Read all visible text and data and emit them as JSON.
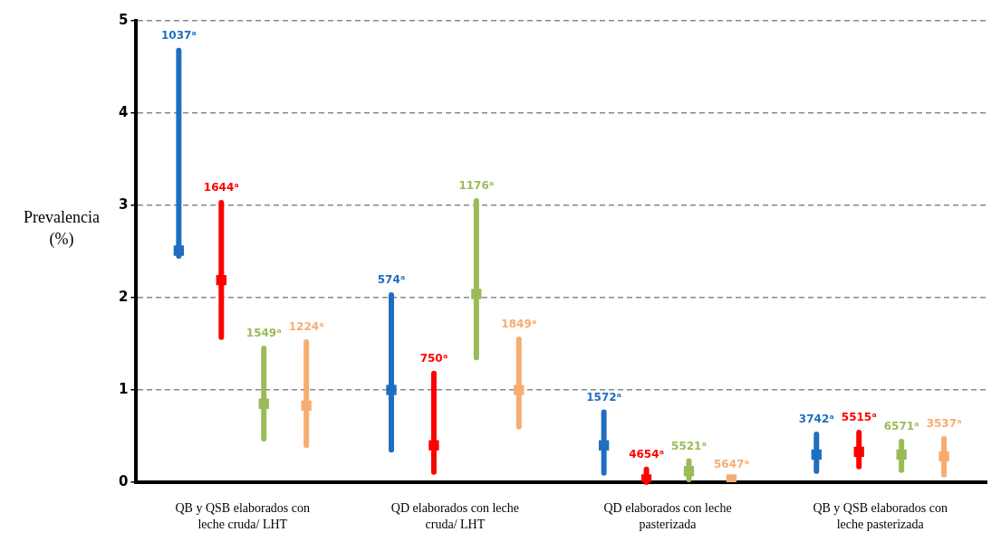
{
  "chart_data": {
    "type": "scatter",
    "ylabel": "Prevalencia (%)",
    "categories": [
      "QB y QSB elaborados con leche cruda/ LHT",
      "QD elaborados con leche cruda/ LHT",
      "QD elaborados con leche pasterizada",
      "QB y QSB elaborados con leche pasterizada"
    ],
    "series": [
      {
        "color": "#1f6fc0",
        "values": [
          2.51,
          1.0,
          0.4,
          0.3
        ],
        "errors": [
          [
            2.45,
            4.68
          ],
          [
            0.35,
            2.03
          ],
          [
            0.1,
            0.76
          ],
          [
            0.12,
            0.52
          ]
        ]
      },
      {
        "color": "#ff0000",
        "values": [
          2.19,
          0.4,
          0.03,
          0.33
        ],
        "errors": [
          [
            1.57,
            3.03
          ],
          [
            0.11,
            1.18
          ],
          [
            0.0,
            0.14
          ],
          [
            0.17,
            0.54
          ]
        ]
      },
      {
        "color": "#9bbb59",
        "values": [
          0.85,
          2.04,
          0.12,
          0.3
        ],
        "errors": [
          [
            0.47,
            1.45
          ],
          [
            1.35,
            3.05
          ],
          [
            0.03,
            0.23
          ],
          [
            0.13,
            0.44
          ]
        ]
      },
      {
        "color": "#f6ad72",
        "values": [
          0.83,
          1.0,
          0.03,
          0.28
        ],
        "errors": [
          [
            0.4,
            1.52
          ],
          [
            0.6,
            1.55
          ],
          null,
          [
            0.08,
            0.47
          ]
        ]
      }
    ],
    "annotations": [
      "1037ᵃ",
      "1644ᵃ",
      "1549ᵃ",
      "1224ᵃ",
      "574ᵃ",
      "750ᵃ",
      "1176ᵃ",
      "1849ᵃ",
      "1572ᵃ",
      "4654ᵃ",
      "5521ᵃ",
      "5647ᵃ",
      "3742ᵃ",
      "5515ᵃ",
      "6571ᵃ",
      "3537ᵃ"
    ],
    "ylim": [
      0,
      5
    ],
    "yticks": [
      0,
      1,
      2,
      3,
      4,
      5
    ],
    "grid": "y",
    "marker": "square",
    "legend": false
  }
}
